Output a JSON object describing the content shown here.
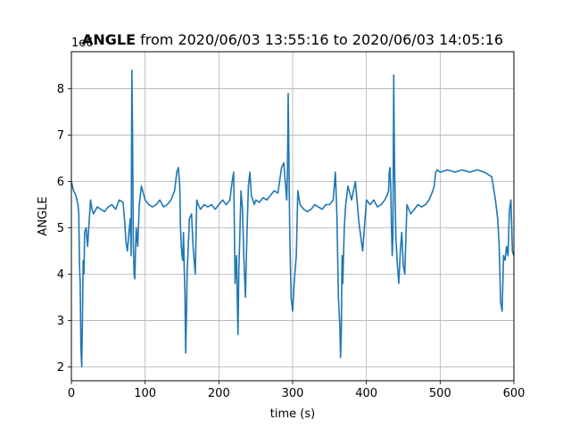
{
  "chart_data": {
    "type": "line",
    "title_bold": "ANGLE",
    "title_rest": " from 2020/06/03 13:55:16 to 2020/06/03 14:05:16",
    "xlabel": "time (s)",
    "ylabel": "ANGLE",
    "offset_text": "1e6",
    "xlim": [
      0,
      600
    ],
    "ylim": [
      1.7,
      8.8
    ],
    "xticks": [
      0,
      100,
      200,
      300,
      400,
      500,
      600
    ],
    "yticks": [
      2,
      3,
      4,
      5,
      6,
      7,
      8
    ],
    "grid": true,
    "line_color": "#1f77b4",
    "series": [
      {
        "x": [
          0,
          3,
          6,
          9,
          10,
          11,
          12,
          13,
          14,
          15,
          16,
          17,
          18,
          20,
          22,
          24,
          26,
          28,
          30,
          35,
          40,
          45,
          50,
          55,
          60,
          65,
          70,
          72,
          74,
          76,
          78,
          80,
          81,
          82,
          83,
          84,
          85,
          86,
          87,
          88,
          90,
          92,
          95,
          100,
          105,
          110,
          115,
          120,
          125,
          130,
          135,
          140,
          143,
          145,
          147,
          148,
          149,
          150,
          151,
          152,
          153,
          154,
          155,
          156,
          157,
          158,
          160,
          163,
          165,
          168,
          170,
          172,
          175,
          180,
          185,
          190,
          195,
          200,
          205,
          210,
          215,
          218,
          220,
          221,
          222,
          223,
          224,
          225,
          226,
          227,
          228,
          230,
          232,
          234,
          236,
          238,
          240,
          242,
          244,
          246,
          248,
          250,
          255,
          260,
          265,
          270,
          275,
          280,
          285,
          288,
          290,
          292,
          293,
          294,
          295,
          296,
          297,
          298,
          300,
          302,
          305,
          307,
          310,
          315,
          320,
          325,
          330,
          335,
          340,
          345,
          350,
          355,
          358,
          360,
          362,
          363,
          364,
          365,
          366,
          367,
          368,
          370,
          372,
          375,
          380,
          385,
          390,
          395,
          400,
          405,
          410,
          415,
          420,
          425,
          428,
          430,
          431,
          432,
          433,
          434,
          435,
          436,
          437,
          438,
          440,
          442,
          444,
          446,
          448,
          450,
          452,
          455,
          460,
          465,
          470,
          475,
          480,
          485,
          490,
          492,
          494,
          496,
          500,
          510,
          520,
          530,
          540,
          550,
          560,
          570,
          575,
          578,
          580,
          582,
          584,
          586,
          588,
          590,
          592,
          594,
          596,
          598,
          600
        ],
        "y": [
          6.0,
          5.8,
          5.7,
          5.5,
          5.3,
          4.2,
          3.8,
          2.4,
          2.0,
          3.0,
          4.3,
          4.0,
          4.9,
          5.0,
          4.6,
          5.1,
          5.6,
          5.4,
          5.3,
          5.45,
          5.4,
          5.35,
          5.45,
          5.5,
          5.4,
          5.6,
          5.55,
          5.2,
          4.7,
          4.5,
          4.9,
          5.2,
          4.4,
          8.4,
          7.0,
          4.7,
          4.0,
          3.9,
          4.5,
          5.0,
          4.6,
          5.5,
          5.9,
          5.6,
          5.5,
          5.45,
          5.5,
          5.6,
          5.45,
          5.5,
          5.6,
          5.8,
          6.2,
          6.3,
          5.9,
          5.0,
          4.6,
          4.4,
          4.3,
          4.9,
          4.1,
          3.6,
          2.3,
          3.1,
          4.1,
          4.4,
          5.2,
          5.3,
          4.6,
          4.0,
          5.6,
          5.5,
          5.4,
          5.5,
          5.45,
          5.5,
          5.4,
          5.5,
          5.6,
          5.5,
          5.6,
          6.0,
          6.2,
          5.0,
          3.8,
          4.2,
          4.4,
          3.4,
          2.7,
          4.1,
          4.6,
          5.8,
          5.4,
          4.3,
          3.5,
          4.8,
          5.9,
          6.2,
          5.7,
          5.6,
          5.5,
          5.6,
          5.55,
          5.65,
          5.6,
          5.7,
          5.8,
          5.75,
          6.3,
          6.4,
          6.0,
          5.6,
          6.2,
          7.9,
          6.4,
          5.0,
          4.2,
          3.5,
          3.2,
          3.8,
          4.4,
          5.8,
          5.5,
          5.4,
          5.35,
          5.4,
          5.5,
          5.45,
          5.4,
          5.5,
          5.5,
          5.6,
          6.2,
          5.3,
          3.5,
          3.2,
          2.9,
          2.2,
          2.8,
          4.4,
          3.8,
          5.0,
          5.5,
          5.9,
          5.6,
          6.0,
          5.1,
          4.5,
          5.6,
          5.5,
          5.6,
          5.45,
          5.5,
          5.6,
          5.7,
          5.8,
          6.2,
          6.3,
          5.9,
          5.0,
          4.4,
          4.8,
          8.3,
          6.5,
          4.8,
          4.2,
          3.8,
          4.5,
          4.9,
          4.2,
          4.0,
          5.5,
          5.3,
          5.4,
          5.5,
          5.45,
          5.5,
          5.6,
          5.8,
          5.9,
          6.2,
          6.25,
          6.2,
          6.25,
          6.2,
          6.25,
          6.2,
          6.25,
          6.2,
          6.1,
          5.6,
          5.2,
          4.6,
          3.4,
          3.2,
          4.4,
          4.3,
          4.6,
          4.4,
          5.4,
          5.6,
          4.5,
          4.4
        ]
      }
    ]
  }
}
